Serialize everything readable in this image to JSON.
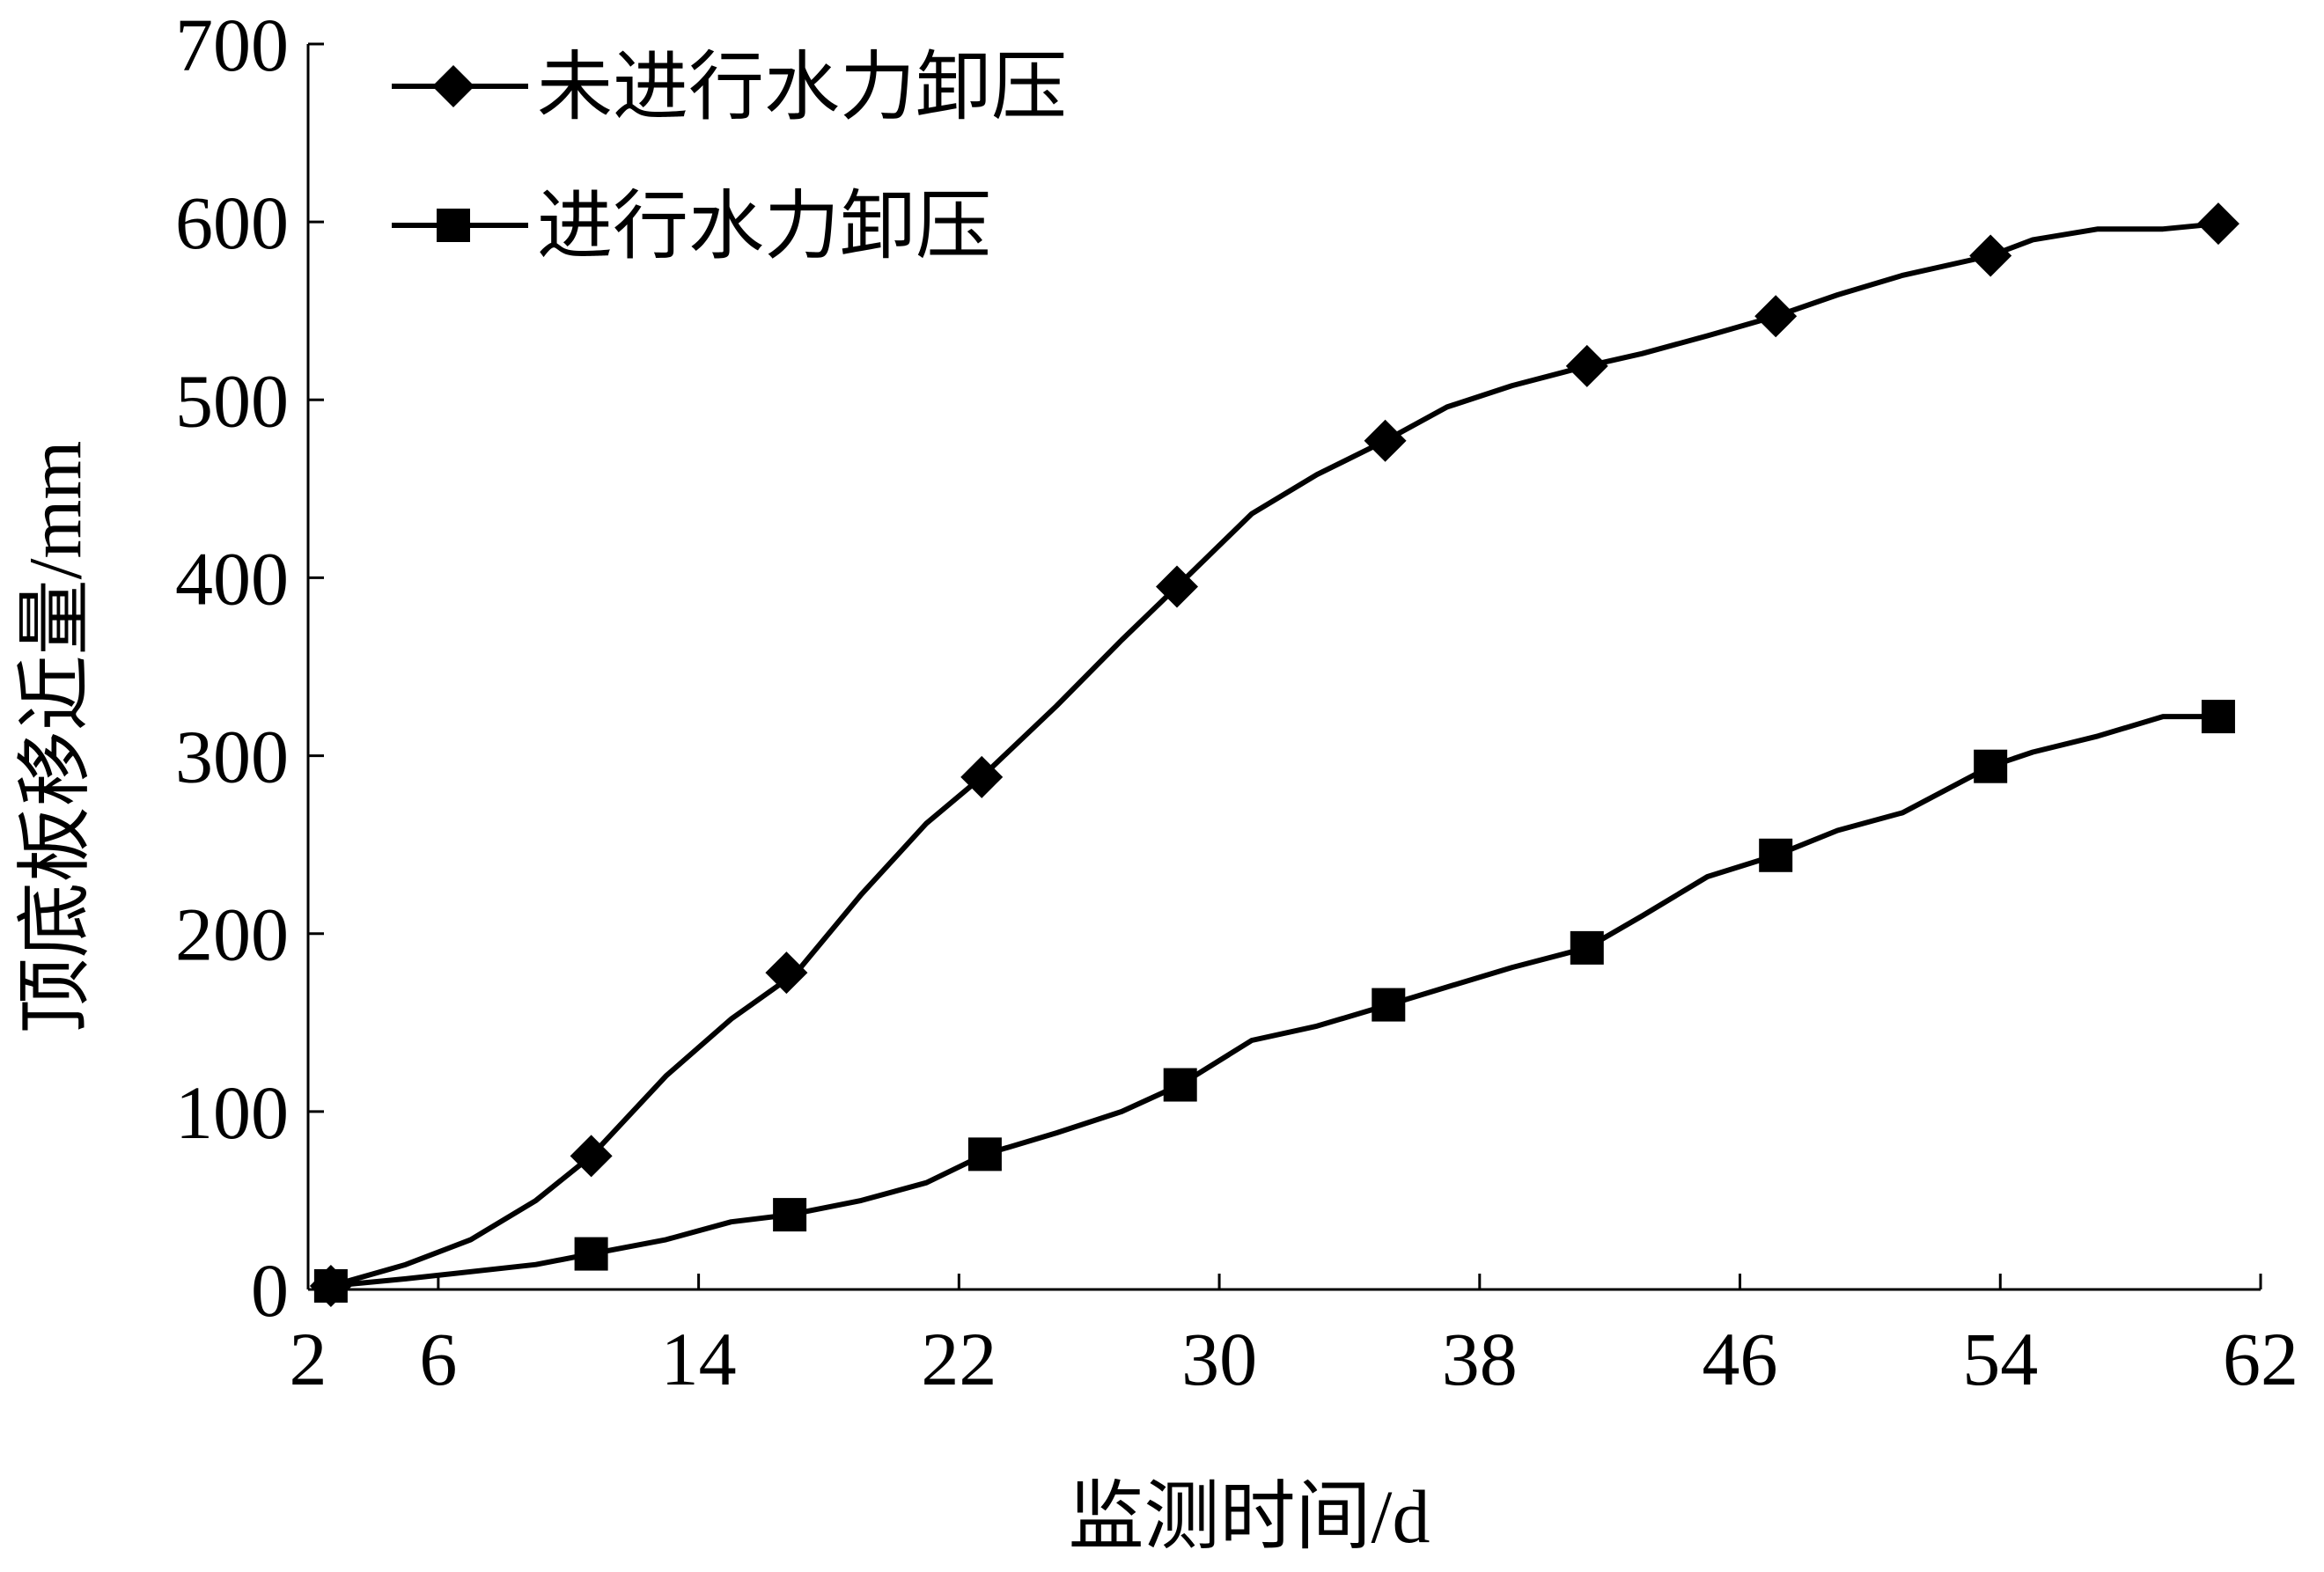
{
  "chart_data": {
    "type": "line",
    "title": "",
    "xlabel": "监测时间/d",
    "ylabel": "顶底板移近量/mm",
    "xlim": [
      2,
      62
    ],
    "ylim": [
      0,
      700
    ],
    "x_ticks": [
      2,
      6,
      14,
      22,
      30,
      38,
      46,
      54,
      62
    ],
    "y_ticks": [
      0,
      100,
      200,
      300,
      400,
      500,
      600,
      700
    ],
    "grid": false,
    "legend_position": "top-left",
    "series": [
      {
        "name": "未进行水力卸压",
        "marker": "diamond",
        "color": "#000000",
        "x": [
          2.7,
          5,
          7,
          9,
          10.7,
          13,
          15,
          17,
          19,
          21,
          22.7,
          25,
          27,
          28.7,
          31,
          33,
          35.1,
          37,
          39,
          41.3,
          43,
          45,
          47.1,
          49,
          51,
          53.7,
          55,
          57,
          59,
          60.7
        ],
        "y": [
          2,
          14,
          28,
          50,
          75,
          120,
          152,
          178,
          222,
          262,
          288,
          328,
          365,
          395,
          436,
          458,
          477,
          496,
          508,
          519,
          526,
          536,
          547,
          559,
          570,
          581,
          590,
          596,
          596,
          599
        ],
        "markers_x": [
          2.7,
          10.7,
          16.7,
          22.7,
          28.7,
          35.1,
          41.3,
          47.1,
          53.7,
          60.7
        ],
        "markers_y": [
          2,
          75,
          178,
          288,
          395,
          477,
          519,
          547,
          581,
          599
        ]
      },
      {
        "name": "进行水力卸压",
        "marker": "square",
        "color": "#000000",
        "x": [
          2.7,
          5,
          7,
          9,
          10.7,
          13,
          15,
          16.8,
          19,
          21,
          22.8,
          25,
          27,
          28.8,
          31,
          33,
          35.2,
          37,
          39,
          41.3,
          43,
          45,
          47.1,
          49,
          51,
          53.7,
          55,
          57,
          59,
          60.7
        ],
        "y": [
          2,
          6,
          10,
          14,
          20,
          28,
          38,
          42,
          50,
          60,
          76,
          88,
          100,
          115,
          140,
          148,
          160,
          170,
          181,
          192,
          210,
          232,
          244,
          258,
          268,
          294,
          302,
          311,
          322,
          322
        ],
        "markers_x": [
          2.7,
          10.7,
          16.8,
          22.8,
          28.8,
          35.2,
          41.3,
          47.1,
          53.7,
          60.7
        ],
        "markers_y": [
          2,
          20,
          42,
          76,
          115,
          160,
          192,
          244,
          294,
          322
        ]
      }
    ]
  }
}
